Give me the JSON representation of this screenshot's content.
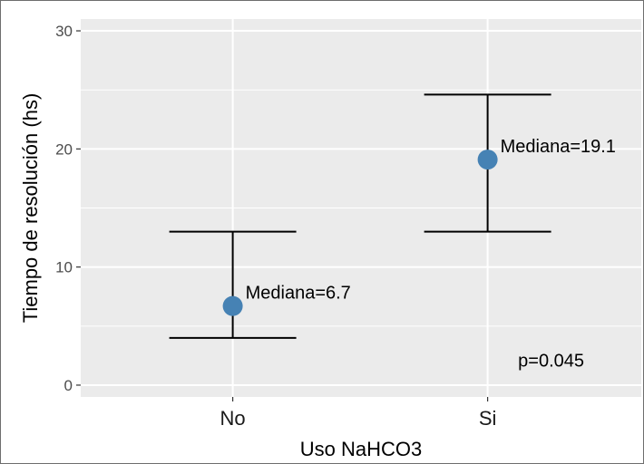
{
  "chart_data": {
    "type": "scatter",
    "xlabel": "Uso NaHCO3",
    "ylabel": "Tiempo de resolución (hs)",
    "categories": [
      "No",
      "Si"
    ],
    "ylim": [
      -1,
      31
    ],
    "yticks": [
      0,
      10,
      20,
      30
    ],
    "points": [
      {
        "category": "No",
        "median": 6.7,
        "lower": 4.0,
        "upper": 13.0,
        "label": "Mediana=6.7"
      },
      {
        "category": "Si",
        "median": 19.1,
        "lower": 13.0,
        "upper": 24.6,
        "label": "Mediana=19.1"
      }
    ],
    "annotation": {
      "text": "p=0.045",
      "x": "Si",
      "y": 2.1
    },
    "grid": true,
    "colors": {
      "point": "#4682b4",
      "panel": "#ebebeb",
      "grid": "#ffffff",
      "errorbar": "#000000"
    }
  }
}
